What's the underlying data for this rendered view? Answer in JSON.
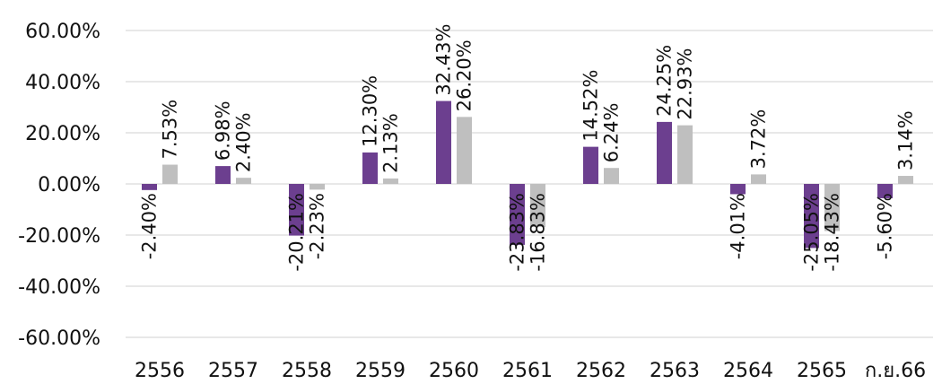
{
  "colors": {
    "series_1": "#6c3f8f",
    "series_2": "#bfbfbf",
    "grid": "#d0d0d0",
    "text": "#111111"
  },
  "chart_data": {
    "type": "bar",
    "categories": [
      "2556",
      "2557",
      "2558",
      "2559",
      "2560",
      "2561",
      "2562",
      "2563",
      "2564",
      "2565",
      "ก.ย.66"
    ],
    "series": [
      {
        "values": [
          -2.4,
          6.98,
          -20.21,
          12.3,
          32.43,
          -23.83,
          14.52,
          24.25,
          -4.01,
          -25.05,
          -5.6
        ],
        "labels": [
          "-2.40%",
          "6.98%",
          "-20.21%",
          "12.30%",
          "32.43%",
          "-23.83%",
          "14.52%",
          "24.25%",
          "-4.01%",
          "-25.05%",
          "-5.60%"
        ]
      },
      {
        "values": [
          7.53,
          2.4,
          -2.23,
          2.13,
          26.2,
          -16.83,
          6.24,
          22.93,
          3.72,
          -18.43,
          3.14
        ],
        "labels": [
          "7.53%",
          "2.40%",
          "-2.23%",
          "2.13%",
          "26.20%",
          "-16.83%",
          "6.24%",
          "22.93%",
          "3.72%",
          "-18.43%",
          "3.14%"
        ]
      }
    ],
    "yticks": [
      60,
      40,
      20,
      0,
      -20,
      -40,
      -60
    ],
    "ytick_labels": [
      "60.00%",
      "40.00%",
      "20.00%",
      "0.00%",
      "-20.00%",
      "-40.00%",
      "-60.00%"
    ],
    "ylim": [
      -60,
      60
    ],
    "grid": true,
    "legend": "none",
    "title": "",
    "xlabel": "",
    "ylabel": ""
  }
}
